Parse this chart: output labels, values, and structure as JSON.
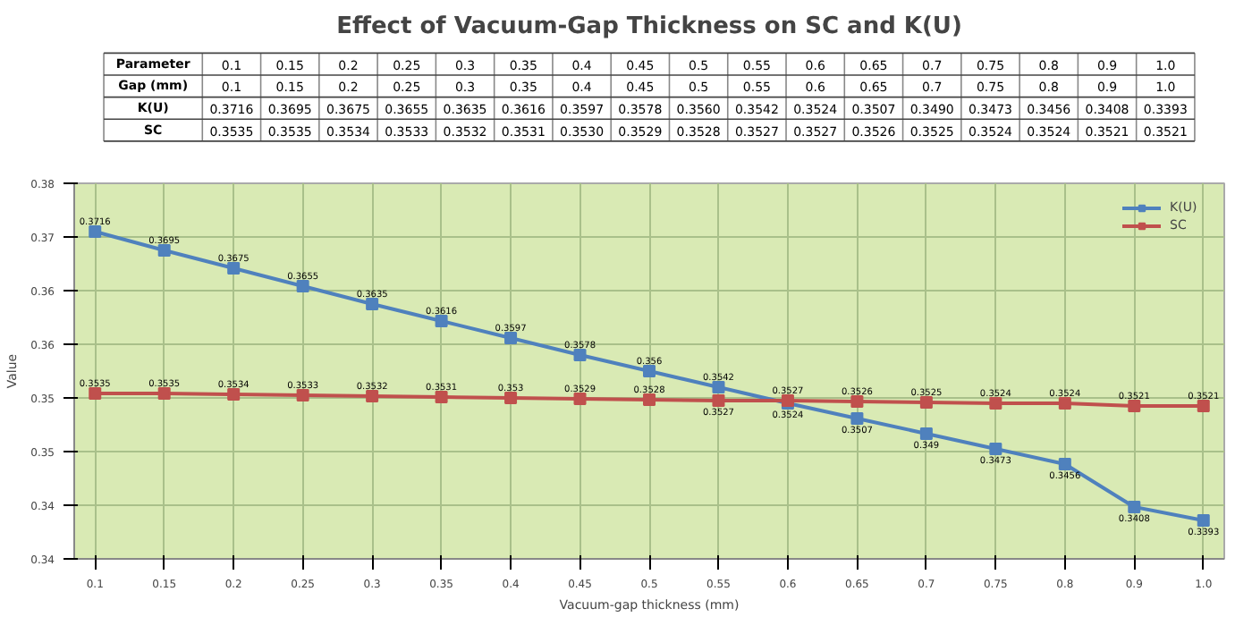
{
  "chart_data": {
    "type": "line",
    "title": "Effect of Vacuum-Gap Thickness on SC and K(U)",
    "xlabel": "Vacuum-gap thickness (mm)",
    "ylabel": "Value",
    "categories": [
      "0.1",
      "0.15",
      "0.2",
      "0.25",
      "0.3",
      "0.35",
      "0.4",
      "0.45",
      "0.5",
      "0.55",
      "0.6",
      "0.65",
      "0.7",
      "0.75",
      "0.8",
      "0.9",
      "1.0"
    ],
    "series": [
      {
        "name": "K(U)",
        "color": "#4f81bd",
        "values": [
          0.3716,
          0.3695,
          0.3675,
          0.3655,
          0.3635,
          0.3616,
          0.3597,
          0.3578,
          0.356,
          0.3542,
          0.3524,
          0.3507,
          0.349,
          0.3473,
          0.3456,
          0.3408,
          0.3393
        ],
        "value_labels": [
          "0.3716",
          "0.3695",
          "0.3675",
          "0.3655",
          "0.3635",
          "0.3616",
          "0.3597",
          "0.3578",
          "0.356",
          "0.3542",
          "0.3524",
          "0.3507",
          "0.349",
          "0.3473",
          "0.3456",
          "0.3408",
          "0.3393"
        ]
      },
      {
        "name": "SC",
        "color": "#c0504d",
        "values": [
          0.3535,
          0.3535,
          0.3534,
          0.3533,
          0.3532,
          0.3531,
          0.353,
          0.3529,
          0.3528,
          0.3527,
          0.3527,
          0.3526,
          0.3525,
          0.3524,
          0.3524,
          0.3521,
          0.3521
        ],
        "value_labels": [
          "0.3535",
          "0.3535",
          "0.3534",
          "0.3533",
          "0.3532",
          "0.3531",
          "0.353",
          "0.3529",
          "0.3528",
          "0.3527",
          "0.3527",
          "0.3526",
          "0.3525",
          "0.3524",
          "0.3524",
          "0.3521",
          "0.3521"
        ]
      }
    ],
    "annotations": [
      "Parameter",
      "Gap (mm)",
      "0.3716",
      "0.3695",
      "0.3675",
      "0.3655",
      "0.3635",
      "0.3616",
      "0.3597",
      "0.3578",
      "0.3560",
      "0.3542",
      "0.3524",
      "0.3507",
      "0.3490",
      "0.3473",
      "0.3456",
      "0.3408",
      "0.3393",
      "0.3535",
      "0.3535",
      "0.3534",
      "0.3533",
      "0.3532",
      "0.3531",
      "0.3530",
      "0.3529",
      "0.3528",
      "0.3527",
      "0.3527",
      "0.3526",
      "0.3525",
      "0.3524",
      "0.3524",
      "0.3521",
      "0.3521"
    ],
    "ylim": [
      0.335,
      0.377
    ],
    "yticks": [
      {
        "value": 0.335,
        "label": "0.34"
      },
      {
        "value": 0.341,
        "label": "0.34"
      },
      {
        "value": 0.347,
        "label": "0.35"
      },
      {
        "value": 0.353,
        "label": "0.35"
      },
      {
        "value": 0.359,
        "label": "0.36"
      },
      {
        "value": 0.365,
        "label": "0.36"
      },
      {
        "value": 0.371,
        "label": "0.37"
      },
      {
        "value": 0.377,
        "label": "0.38"
      }
    ],
    "grid": true,
    "legend": "top right",
    "marker": "square",
    "line_style": "solid"
  }
}
